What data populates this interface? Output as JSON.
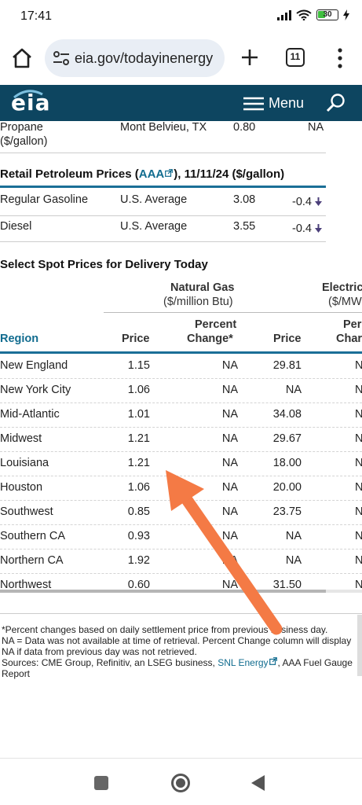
{
  "status_bar": {
    "time": "17:41",
    "battery": "30"
  },
  "browser": {
    "url": "eia.gov/todayinenergy",
    "tab_count": "11"
  },
  "site": {
    "logo": "eia",
    "menu_label": "Menu"
  },
  "propane": {
    "name": "Propane",
    "unit": "($/gallon)",
    "location": "Mont Belvieu, TX",
    "price": "0.80",
    "change": "NA"
  },
  "retail": {
    "title_prefix": "Retail Petroleum Prices (",
    "link": "AAA",
    "title_suffix": "), 11/11/24 ($/gallon)",
    "rows": [
      {
        "product": "Regular Gasoline",
        "area": "U.S. Average",
        "price": "3.08",
        "change": "-0.4"
      },
      {
        "product": "Diesel",
        "area": "U.S. Average",
        "price": "3.55",
        "change": "-0.4"
      }
    ]
  },
  "spot": {
    "title": "Select Spot Prices for Delivery Today",
    "natgas": "Natural Gas",
    "natgas_unit": "($/million Btu)",
    "electric": "Electric",
    "electric_unit": "($/MW",
    "region": "Region",
    "price": "Price",
    "percent": "Percent",
    "change": "Change*",
    "price2": "Price",
    "percent2": "Per",
    "change2": "Char",
    "rows": [
      {
        "region": "New England",
        "gas": "1.15",
        "gas_chg": "NA",
        "elec": "29.81",
        "elec_chg": "N"
      },
      {
        "region": "New York City",
        "gas": "1.06",
        "gas_chg": "NA",
        "elec": "NA",
        "elec_chg": "N"
      },
      {
        "region": "Mid-Atlantic",
        "gas": "1.01",
        "gas_chg": "NA",
        "elec": "34.08",
        "elec_chg": "N"
      },
      {
        "region": "Midwest",
        "gas": "1.21",
        "gas_chg": "NA",
        "elec": "29.67",
        "elec_chg": "N"
      },
      {
        "region": "Louisiana",
        "gas": "1.21",
        "gas_chg": "NA",
        "elec": "18.00",
        "elec_chg": "N"
      },
      {
        "region": "Houston",
        "gas": "1.06",
        "gas_chg": "NA",
        "elec": "20.00",
        "elec_chg": "N"
      },
      {
        "region": "Southwest",
        "gas": "0.85",
        "gas_chg": "NA",
        "elec": "23.75",
        "elec_chg": "N"
      },
      {
        "region": "Southern CA",
        "gas": "0.93",
        "gas_chg": "NA",
        "elec": "NA",
        "elec_chg": "N"
      },
      {
        "region": "Northern CA",
        "gas": "1.92",
        "gas_chg": "NA",
        "elec": "NA",
        "elec_chg": "N"
      },
      {
        "region": "Northwest",
        "gas": "0.60",
        "gas_chg": "NA",
        "elec": "31.50",
        "elec_chg": "N"
      }
    ]
  },
  "footnotes": {
    "line1": "*Percent changes based on daily settlement price from previous business day.",
    "line2": "NA = Data was not available at time of retrieval. Percent Change column will display NA if data from previous day was not retrieved.",
    "sources_prefix": "Sources: CME Group, Refinitiv, an LSEG business, ",
    "sources_link": "SNL Energy",
    "sources_suffix": ", AAA Fuel Gauge Report"
  },
  "colors": {
    "header_bg": "#0d4560",
    "link": "#116c8f",
    "rule": "#1b6f97",
    "annotation_arrow": "#f47a45"
  }
}
